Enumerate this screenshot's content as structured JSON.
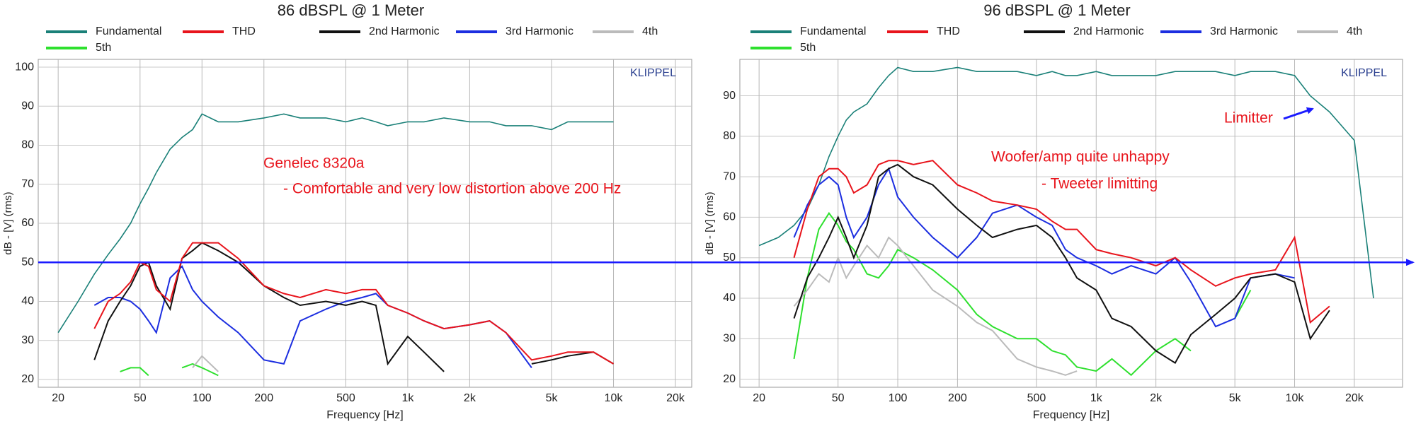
{
  "chart_data": [
    {
      "type": "line",
      "title": "86 dBSPL @ 1 Meter",
      "xlabel": "Frequency [Hz]",
      "ylabel": "dB - [V]  (rms)",
      "xscale": "log",
      "grid": true,
      "watermark": "KLIPPEL",
      "annotations": [
        "Genelec 8320a",
        "- Comfortable and very low distortion above 200 Hz"
      ],
      "reference_line": {
        "value": 50,
        "color": "#1a1aff"
      },
      "xlim": [
        16,
        24000
      ],
      "ylim": [
        18,
        102
      ],
      "xticks": [
        20,
        50,
        100,
        200,
        500,
        {
          "value": 1000,
          "label": "1k"
        },
        {
          "value": 2000,
          "label": "2k"
        },
        {
          "value": 5000,
          "label": "5k"
        },
        {
          "value": 10000,
          "label": "10k"
        },
        {
          "value": 20000,
          "label": "20k"
        }
      ],
      "yticks": [
        20,
        30,
        40,
        50,
        60,
        70,
        80,
        90,
        100
      ],
      "x": [
        20,
        25,
        30,
        35,
        40,
        45,
        50,
        55,
        60,
        70,
        80,
        90,
        100,
        120,
        150,
        200,
        250,
        300,
        400,
        500,
        600,
        700,
        800,
        1000,
        1200,
        1500,
        2000,
        2500,
        3000,
        4000,
        5000,
        6000,
        8000,
        10000
      ],
      "series": [
        {
          "name": "Fundamental",
          "color": "#1a8078",
          "values": [
            32,
            40,
            47,
            52,
            56,
            60,
            65,
            69,
            73,
            79,
            82,
            84,
            88,
            86,
            86,
            87,
            88,
            87,
            87,
            86,
            87,
            86,
            85,
            86,
            86,
            87,
            86,
            86,
            85,
            85,
            84,
            86,
            86,
            86
          ]
        },
        {
          "name": "THD",
          "color": "#e8141c",
          "values": [
            null,
            null,
            33,
            40,
            42,
            45,
            50,
            49,
            43,
            40,
            51,
            55,
            55,
            55,
            51,
            44,
            42,
            41,
            43,
            42,
            43,
            43,
            39,
            37,
            35,
            33,
            34,
            35,
            32,
            25,
            26,
            27,
            27,
            24
          ]
        },
        {
          "name": "2nd Harmonic",
          "color": "#111111",
          "values": [
            null,
            null,
            25,
            35,
            40,
            44,
            49,
            50,
            44,
            38,
            51,
            53,
            55,
            53,
            50,
            44,
            41,
            39,
            40,
            39,
            40,
            39,
            24,
            31,
            27,
            22,
            null,
            null,
            null,
            24,
            25,
            26,
            27,
            24
          ]
        },
        {
          "name": "3rd Harmonic",
          "color": "#1c2ee0",
          "values": [
            null,
            null,
            39,
            41,
            41,
            40,
            38,
            35,
            32,
            46,
            49,
            43,
            40,
            36,
            32,
            25,
            24,
            35,
            38,
            40,
            41,
            42,
            39,
            37,
            35,
            33,
            34,
            35,
            32,
            23,
            null,
            null,
            null,
            null
          ]
        },
        {
          "name": "4th",
          "color": "#bbbbbb",
          "values": [
            null,
            null,
            null,
            null,
            null,
            null,
            null,
            null,
            null,
            null,
            null,
            23,
            26,
            22,
            null,
            null,
            null,
            null,
            null,
            null,
            null,
            null,
            null,
            null,
            null,
            null,
            null,
            null,
            null,
            null,
            null,
            null,
            null,
            null
          ]
        },
        {
          "name": "5th",
          "color": "#2ee02e",
          "values": [
            null,
            null,
            null,
            null,
            22,
            23,
            23,
            21,
            null,
            null,
            23,
            24,
            23,
            21,
            null,
            null,
            null,
            null,
            null,
            null,
            null,
            null,
            null,
            null,
            null,
            null,
            null,
            null,
            null,
            null,
            null,
            null,
            null,
            null
          ]
        }
      ]
    },
    {
      "type": "line",
      "title": "96 dBSPL @ 1 Meter",
      "xlabel": "Frequency [Hz]",
      "ylabel": "dB - [V]  (rms)",
      "xscale": "log",
      "grid": true,
      "watermark": "KLIPPEL",
      "annotations": [
        "Woofer/amp quite unhappy",
        "- Tweeter limitting",
        "Limitter"
      ],
      "xlim": [
        16,
        35000
      ],
      "ylim": [
        18,
        99
      ],
      "xticks": [
        20,
        50,
        100,
        200,
        500,
        {
          "value": 1000,
          "label": "1k"
        },
        {
          "value": 2000,
          "label": "2k"
        },
        {
          "value": 5000,
          "label": "5k"
        },
        {
          "value": 10000,
          "label": "10k"
        },
        {
          "value": 20000,
          "label": "20k"
        }
      ],
      "yticks": [
        20,
        30,
        40,
        50,
        60,
        70,
        80,
        90
      ],
      "x": [
        20,
        25,
        30,
        35,
        40,
        45,
        50,
        55,
        60,
        70,
        80,
        90,
        100,
        120,
        150,
        200,
        250,
        300,
        400,
        500,
        600,
        700,
        800,
        1000,
        1200,
        1500,
        2000,
        2500,
        3000,
        4000,
        5000,
        6000,
        8000,
        10000,
        12000,
        15000,
        20000,
        25000
      ],
      "series": [
        {
          "name": "Fundamental",
          "color": "#1a8078",
          "values": [
            53,
            55,
            58,
            62,
            68,
            75,
            80,
            84,
            86,
            88,
            92,
            95,
            97,
            96,
            96,
            97,
            96,
            96,
            96,
            95,
            96,
            95,
            95,
            96,
            95,
            95,
            95,
            96,
            96,
            96,
            95,
            96,
            96,
            95,
            90,
            86,
            79,
            40
          ]
        },
        {
          "name": "THD",
          "color": "#e8141c",
          "values": [
            null,
            null,
            50,
            62,
            70,
            72,
            72,
            70,
            66,
            68,
            73,
            74,
            74,
            73,
            74,
            68,
            66,
            64,
            63,
            62,
            59,
            57,
            57,
            52,
            51,
            50,
            48,
            50,
            47,
            43,
            45,
            46,
            47,
            55,
            34,
            38,
            null,
            null
          ]
        },
        {
          "name": "2nd Harmonic",
          "color": "#111111",
          "values": [
            null,
            null,
            35,
            45,
            50,
            55,
            60,
            55,
            50,
            58,
            70,
            72,
            73,
            70,
            68,
            62,
            58,
            55,
            57,
            58,
            55,
            50,
            45,
            42,
            35,
            33,
            27,
            24,
            31,
            36,
            40,
            45,
            46,
            44,
            30,
            37,
            null,
            null
          ]
        },
        {
          "name": "3rd Harmonic",
          "color": "#1c2ee0",
          "values": [
            null,
            null,
            55,
            63,
            68,
            70,
            68,
            60,
            55,
            60,
            68,
            72,
            65,
            60,
            55,
            50,
            55,
            61,
            63,
            60,
            58,
            52,
            50,
            48,
            46,
            48,
            46,
            50,
            44,
            33,
            35,
            45,
            46,
            45,
            null,
            null,
            null,
            null
          ]
        },
        {
          "name": "4th",
          "color": "#bbbbbb",
          "values": [
            null,
            null,
            38,
            42,
            46,
            44,
            50,
            45,
            48,
            53,
            50,
            55,
            53,
            48,
            42,
            38,
            34,
            32,
            25,
            23,
            22,
            21,
            22,
            null,
            null,
            null,
            null,
            null,
            null,
            null,
            null,
            null,
            null,
            null,
            null,
            null,
            null,
            null
          ]
        },
        {
          "name": "5th",
          "color": "#2ee02e",
          "values": [
            null,
            null,
            25,
            45,
            57,
            61,
            58,
            54,
            52,
            46,
            45,
            48,
            52,
            50,
            47,
            42,
            36,
            33,
            30,
            30,
            27,
            26,
            23,
            22,
            25,
            21,
            27,
            30,
            27,
            null,
            35,
            42,
            null,
            null,
            null,
            null,
            null,
            null
          ]
        }
      ]
    }
  ]
}
